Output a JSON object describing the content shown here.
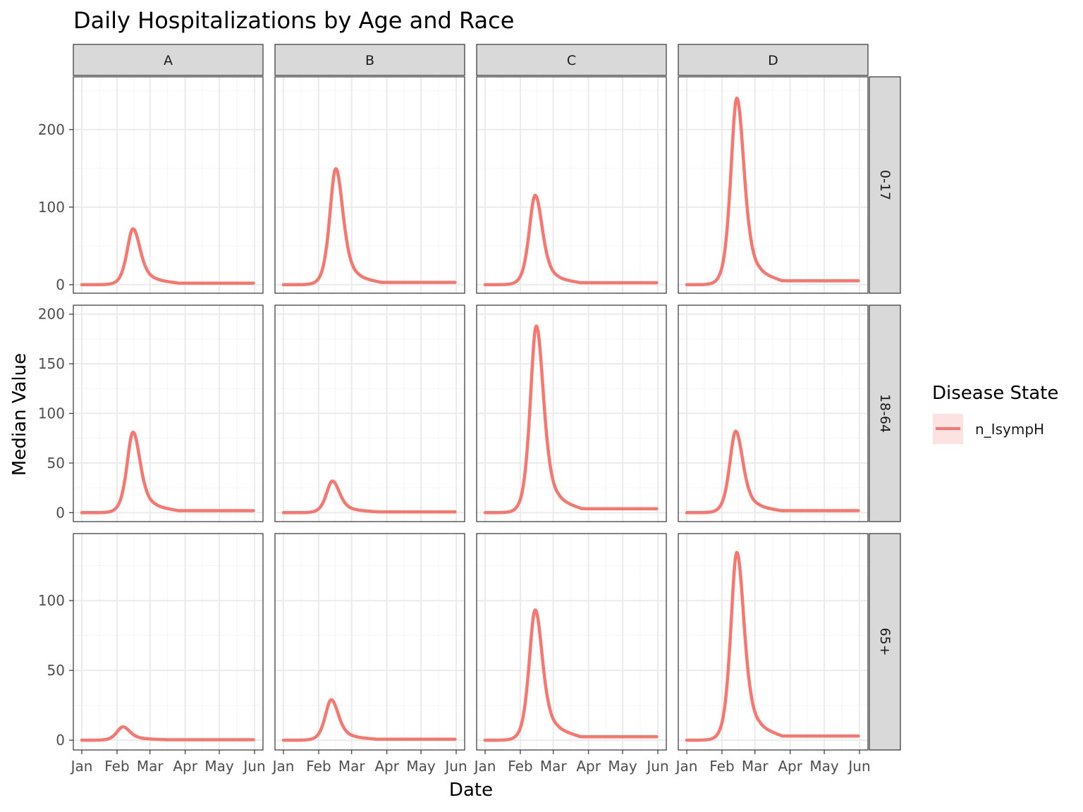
{
  "chart_data": {
    "type": "line",
    "title": "Daily Hospitalizations by Age and Race",
    "xlabel": "Date",
    "ylabel": "Median Value",
    "x_ticks": [
      "Jan",
      "Feb",
      "Mar",
      "Apr",
      "May",
      "Jun"
    ],
    "x_range": [
      "2020-01-01",
      "2020-06-01"
    ],
    "columns": [
      "A",
      "B",
      "C",
      "D"
    ],
    "rows": [
      {
        "label": "0-17",
        "yticks": [
          0,
          100,
          200
        ],
        "ylim": [
          -11,
          268
        ]
      },
      {
        "label": "18-64",
        "yticks": [
          0,
          50,
          100,
          150,
          200
        ],
        "ylim": [
          -9,
          209
        ]
      },
      {
        "label": "65+",
        "yticks": [
          0,
          50,
          100
        ],
        "ylim": [
          -7,
          148
        ]
      }
    ],
    "legend": {
      "title": "Disease State",
      "position": "right",
      "items": [
        {
          "name": "n_IsympH",
          "color": "#F8766D"
        }
      ]
    },
    "grid": true,
    "series_name": "n_IsympH",
    "panels": [
      {
        "row": "0-17",
        "col": "A",
        "peak_date": "2020-02-15",
        "peak": 75,
        "final": 2
      },
      {
        "row": "0-17",
        "col": "B",
        "peak_date": "2020-02-16",
        "peak": 154,
        "final": 3
      },
      {
        "row": "0-17",
        "col": "C",
        "peak_date": "2020-02-14",
        "peak": 119,
        "final": 2.5
      },
      {
        "row": "0-17",
        "col": "D",
        "peak_date": "2020-02-14",
        "peak": 248,
        "final": 5
      },
      {
        "row": "18-64",
        "col": "A",
        "peak_date": "2020-02-15",
        "peak": 84,
        "final": 2
      },
      {
        "row": "18-64",
        "col": "B",
        "peak_date": "2020-02-13",
        "peak": 33,
        "final": 0.8
      },
      {
        "row": "18-64",
        "col": "C",
        "peak_date": "2020-02-15",
        "peak": 194,
        "final": 4
      },
      {
        "row": "18-64",
        "col": "D",
        "peak_date": "2020-02-13",
        "peak": 85,
        "final": 2
      },
      {
        "row": "65+",
        "col": "A",
        "peak_date": "2020-02-06",
        "peak": 10,
        "final": 0.3
      },
      {
        "row": "65+",
        "col": "B",
        "peak_date": "2020-02-12",
        "peak": 30,
        "final": 0.7
      },
      {
        "row": "65+",
        "col": "C",
        "peak_date": "2020-02-14",
        "peak": 97,
        "final": 2.5
      },
      {
        "row": "65+",
        "col": "D",
        "peak_date": "2020-02-14",
        "peak": 139,
        "final": 3
      }
    ],
    "colors": {
      "line": "#F8766D",
      "strip_fill": "#D9D9D9",
      "panel_border": "#333333",
      "grid_major": "#EBEBEB",
      "grid_minor": "#F5F5F5",
      "legend_key_fill": "#FCE3E2"
    }
  }
}
